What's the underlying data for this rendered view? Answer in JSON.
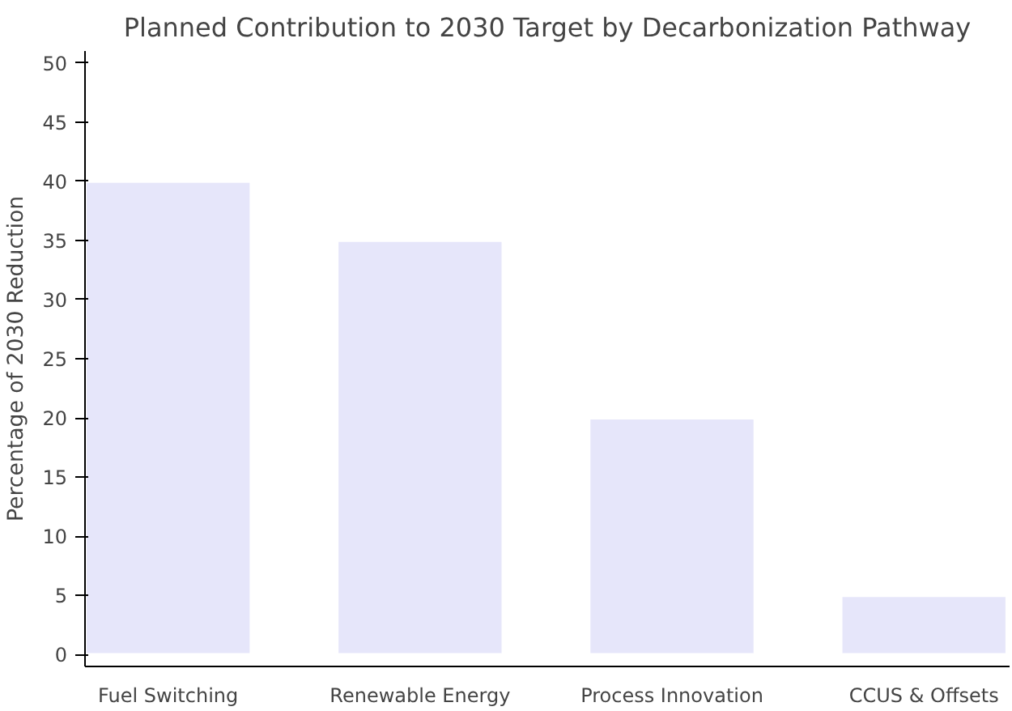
{
  "chart_data": {
    "type": "bar",
    "title": "Planned Contribution to 2030 Target by Decarbonization Pathway",
    "ylabel": "Percentage of 2030 Reduction",
    "categories": [
      "Fuel Switching",
      "Renewable Energy",
      "Process Innovation",
      "CCUS & Offsets"
    ],
    "values": [
      40,
      35,
      20,
      5
    ],
    "color": "#e6e6fa",
    "ylim": [
      -1,
      51
    ],
    "yticks": [
      0,
      5,
      10,
      15,
      20,
      25,
      30,
      35,
      40,
      45,
      50
    ],
    "grid": false
  }
}
